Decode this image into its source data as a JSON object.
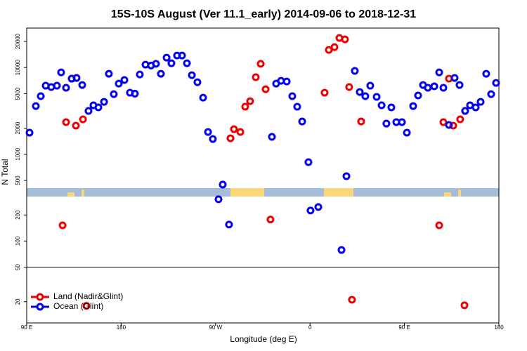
{
  "chart_data": {
    "type": "scatter",
    "title": "15S-10S August (Ver 11.1_early)   2014-09-06 to 2018-12-31",
    "xlabel": "Longitude (deg E)",
    "ylabel": "N Total",
    "log_y": true,
    "hline": 50,
    "legend": "bottom-left",
    "xlim": [
      90,
      540
    ],
    "xticks": [
      {
        "value": 90,
        "label": "90 E"
      },
      180,
      {
        "value": 270,
        "label": "90 W"
      },
      {
        "value": 360,
        "label": "0"
      },
      {
        "value": 450,
        "label": "90 E"
      },
      {
        "value": 540,
        "label": "180"
      }
    ],
    "ylim": [
      11.4,
      28500
    ],
    "yticks": [
      20,
      50,
      100,
      200,
      500,
      1000,
      2000,
      5000,
      10000,
      20000
    ],
    "series": [
      {
        "name": "Land (Nadir&Glint)",
        "color": "#ee0000",
        "x": [
          124.2,
          127.5,
          132.9,
          136.9,
          143.6,
          146.9,
          284.2,
          287.5,
          293.6,
          298.2,
          302.9,
          308.3,
          313.0,
          317.7,
          322.3,
          373.9,
          377.9,
          383.3,
          388.0,
          393.3,
          397.3,
          400.0,
          408.7,
          483.1,
          487.1,
          492.4,
          496.5,
          503.1,
          507.2
        ],
        "values": [
          152,
          2350,
          7445,
          2140,
          2530,
          17.9,
          1530,
          1950,
          1810,
          3535,
          4100,
          7730,
          11050,
          5625,
          177,
          5130,
          15960,
          17180,
          21900,
          21100,
          5955,
          21.1,
          2390,
          152,
          2350,
          7445,
          2140,
          2530,
          18.2
        ]
      },
      {
        "name": "Ocean (Glint)",
        "color": "#0000ee",
        "x": [
          92.7,
          98.7,
          103.4,
          108.1,
          113.4,
          118.8,
          122.8,
          127.5,
          132.9,
          137.5,
          142.9,
          148.9,
          153.6,
          158.3,
          163.7,
          168.3,
          173.0,
          177.7,
          183.1,
          188.4,
          193.1,
          197.8,
          203.2,
          208.5,
          213.2,
          217.9,
          223.3,
          227.9,
          233.3,
          238.0,
          242.7,
          247.4,
          252.7,
          258.1,
          262.8,
          267.4,
          272.8,
          276.8,
          282.8,
          323.7,
          327.7,
          332.4,
          337.8,
          343.1,
          347.8,
          352.5,
          358.5,
          360.5,
          367.9,
          390.0,
          394.7,
          402.7,
          407.4,
          412.7,
          417.4,
          423.5,
          428.2,
          432.8,
          437.5,
          442.2,
          447.6,
          452.3,
          458.3,
          463.0,
          467.7,
          472.3,
          478.4,
          483.1,
          487.1,
          492.4,
          497.8,
          502.5,
          507.8,
          512.5,
          517.9,
          522.6,
          527.9,
          532.6,
          537.3
        ],
        "values": [
          1775,
          3600,
          4675,
          6180,
          5955,
          6180,
          8790,
          5845,
          7445,
          7585,
          6295,
          3160,
          3670,
          3470,
          4025,
          8475,
          4940,
          6530,
          7175,
          5130,
          5000,
          8320,
          10800,
          10550,
          11050,
          8475,
          13000,
          11200,
          13750,
          13750,
          11200,
          8170,
          6780,
          4500,
          1810,
          1500,
          303,
          448,
          155,
          1590,
          6530,
          7035,
          6900,
          4675,
          3535,
          2390,
          812,
          225,
          247,
          79,
          560,
          9140,
          5225,
          4675,
          6180,
          4590,
          3670,
          2260,
          3470,
          2350,
          2350,
          1775,
          3600,
          4765,
          6295,
          5845,
          6070,
          8790,
          5845,
          2180,
          7585,
          6295,
          3160,
          3670,
          3470,
          4025,
          8475,
          4940,
          6650
        ]
      }
    ]
  }
}
